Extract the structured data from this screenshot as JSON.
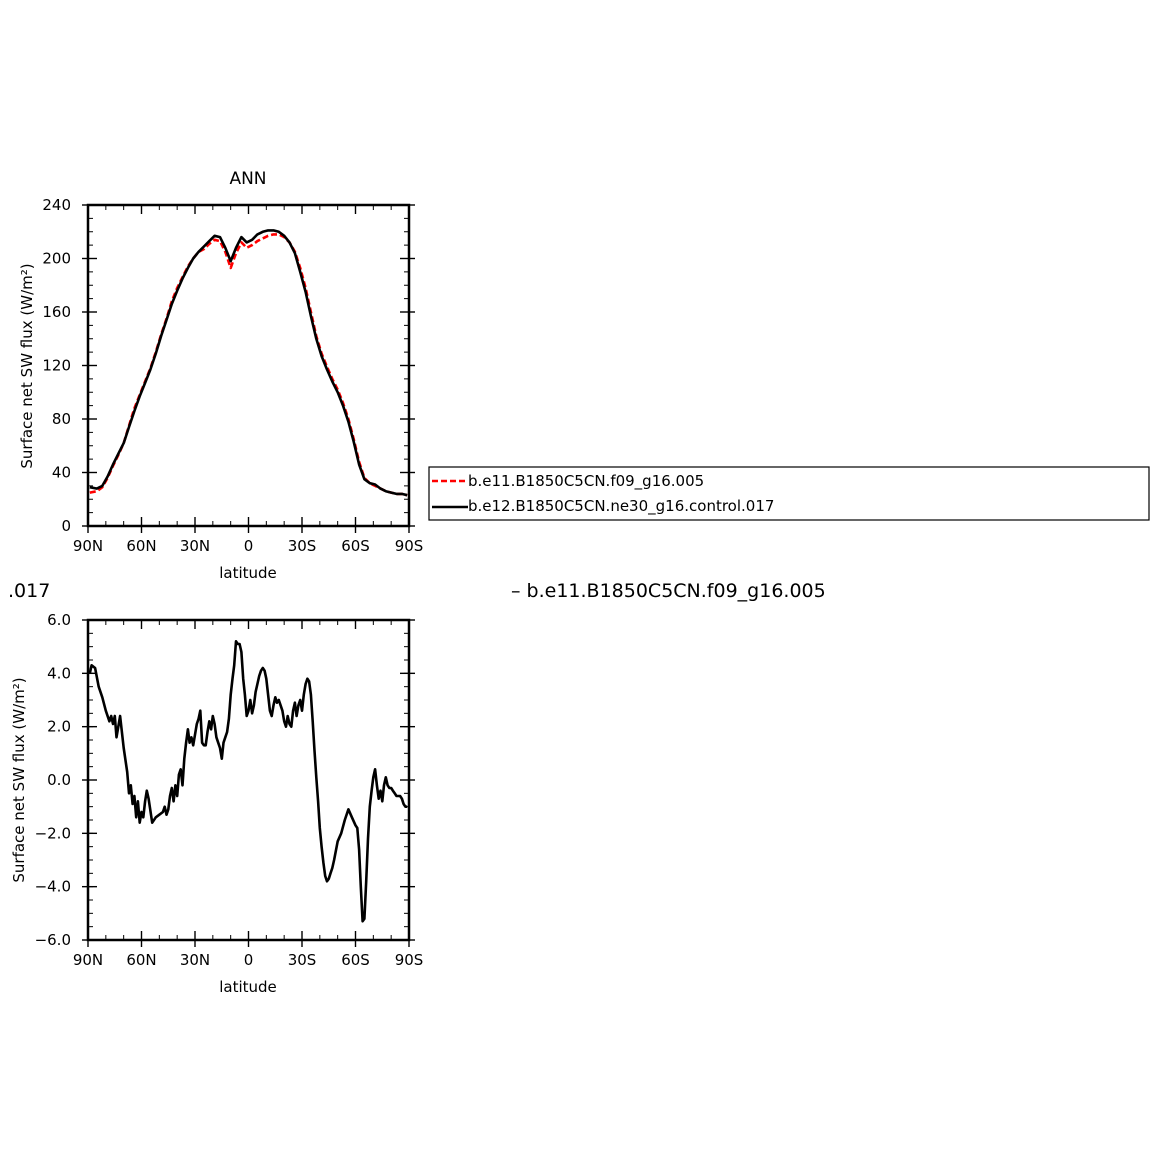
{
  "figure_text": {
    "title_suffix": ".017",
    "diff_label": "–  b.e11.B1850C5CN.f09_g16.005"
  },
  "legend": {
    "entries": [
      {
        "label": "b.e11.B1850C5CN.f09_g16.005",
        "color": "#ff0000",
        "dash": true
      },
      {
        "label": "b.e12.B1850C5CN.ne30_g16.control.017",
        "color": "#000000",
        "dash": false
      }
    ]
  },
  "chart_data": [
    {
      "type": "line",
      "title": "ANN",
      "xlabel": "latitude",
      "ylabel": "Surface net SW flux (W/m²)",
      "xlim": [
        90,
        -90
      ],
      "ylim": [
        0,
        240
      ],
      "xticks": [
        90,
        60,
        30,
        0,
        -30,
        -60,
        -90
      ],
      "xtick_labels": [
        "90N",
        "60N",
        "30N",
        "0",
        "30S",
        "60S",
        "90S"
      ],
      "yticks": [
        0,
        40,
        80,
        120,
        160,
        200,
        240
      ],
      "ytick_labels": [
        "0",
        "40",
        "80",
        "120",
        "160",
        "200",
        "240"
      ],
      "x": [
        89,
        85,
        82,
        79,
        76,
        73,
        70,
        67,
        64,
        61,
        58,
        55,
        52,
        49,
        46,
        43,
        40,
        37,
        34,
        31,
        28,
        25,
        22,
        19,
        16,
        13,
        10,
        7,
        4,
        1,
        -2,
        -5,
        -8,
        -11,
        -14,
        -17,
        -20,
        -23,
        -26,
        -29,
        -32,
        -35,
        -38,
        -41,
        -44,
        -47,
        -50,
        -53,
        -56,
        -59,
        -62,
        -65,
        -68,
        -71,
        -74,
        -77,
        -80,
        -83,
        -86,
        -89
      ],
      "series": [
        {
          "name": "b.e11.B1850C5CN.f09_g16.005",
          "color": "#ff0000",
          "dash": true,
          "values": [
            25,
            26,
            29,
            36,
            45,
            53,
            62,
            75,
            88,
            98,
            108,
            118,
            130,
            143,
            155,
            168,
            178,
            186,
            194,
            200,
            205,
            207,
            211,
            214,
            213,
            205,
            193,
            204,
            212,
            208,
            210,
            213,
            215,
            217,
            218,
            218,
            216,
            212,
            205,
            193,
            178,
            160,
            142,
            129,
            119,
            110,
            102,
            92,
            80,
            65,
            48,
            36,
            32,
            30,
            28,
            26,
            25,
            24,
            24,
            23
          ]
        },
        {
          "name": "b.e12.B1850C5CN.ne30_g16.control.017",
          "color": "#000000",
          "dash": false,
          "values": [
            29,
            28,
            30,
            37,
            46,
            54,
            62,
            74,
            86,
            97,
            107,
            117,
            129,
            142,
            154,
            166,
            176,
            185,
            193,
            200,
            205,
            209,
            213,
            217,
            216,
            208,
            198,
            208,
            216,
            212,
            214,
            218,
            220,
            221,
            221,
            220,
            217,
            212,
            204,
            190,
            175,
            157,
            140,
            127,
            117,
            108,
            100,
            90,
            78,
            63,
            46,
            35,
            32,
            31,
            28,
            26,
            25,
            24,
            24,
            23
          ]
        }
      ]
    },
    {
      "type": "line",
      "title": "",
      "xlabel": "latitude",
      "ylabel": "Surface net SW flux (W/m²)",
      "xlim": [
        90,
        -90
      ],
      "ylim": [
        -6,
        6
      ],
      "xticks": [
        90,
        60,
        30,
        0,
        -30,
        -60,
        -90
      ],
      "xtick_labels": [
        "90N",
        "60N",
        "30N",
        "0",
        "30S",
        "60S",
        "90S"
      ],
      "yticks": [
        6,
        4,
        2,
        0,
        -2,
        -4,
        -6
      ],
      "ytick_labels": [
        "6.0",
        "4.0",
        "2.0",
        "0.0",
        "−2.0",
        "−4.0",
        "−6.0"
      ],
      "x": [
        89,
        88,
        86,
        84,
        82,
        80,
        78,
        77,
        76,
        75,
        74,
        73,
        72,
        70,
        68,
        67,
        66,
        65,
        64,
        63,
        62,
        61,
        60,
        59,
        58,
        57,
        56,
        54,
        52,
        50,
        48,
        47,
        46,
        45,
        44,
        43,
        42,
        41,
        40,
        39,
        38,
        37,
        36,
        35,
        34,
        33,
        32,
        31,
        30,
        29,
        28,
        27,
        26,
        25,
        24,
        23,
        22,
        21,
        20,
        19,
        18,
        17,
        16,
        15,
        14,
        13,
        12,
        11,
        10,
        9,
        8,
        7,
        6,
        5,
        4,
        3,
        2,
        1,
        0,
        -1,
        -2,
        -3,
        -4,
        -5,
        -6,
        -7,
        -8,
        -9,
        -10,
        -11,
        -12,
        -13,
        -14,
        -15,
        -16,
        -17,
        -18,
        -19,
        -20,
        -21,
        -22,
        -23,
        -24,
        -25,
        -26,
        -27,
        -28,
        -29,
        -30,
        -31,
        -32,
        -33,
        -34,
        -35,
        -36,
        -37,
        -38,
        -39,
        -40,
        -41,
        -42,
        -43,
        -44,
        -45,
        -46,
        -47,
        -48,
        -50,
        -52,
        -54,
        -56,
        -58,
        -60,
        -61,
        -62,
        -63,
        -64,
        -65,
        -66,
        -67,
        -68,
        -69,
        -70,
        -71,
        -72,
        -73,
        -74,
        -75,
        -76,
        -77,
        -78,
        -79,
        -80,
        -81,
        -82,
        -83,
        -84,
        -85,
        -86,
        -87,
        -88,
        -89
      ],
      "series": [
        {
          "name": "",
          "color": "#000000",
          "dash": false,
          "values": [
            4.0,
            4.3,
            4.2,
            3.5,
            3.1,
            2.6,
            2.2,
            2.4,
            2.1,
            2.4,
            1.6,
            2.0,
            2.4,
            1.2,
            0.3,
            -0.5,
            -0.2,
            -0.9,
            -0.6,
            -1.4,
            -0.8,
            -1.6,
            -1.2,
            -1.4,
            -0.8,
            -0.4,
            -0.7,
            -1.6,
            -1.4,
            -1.3,
            -1.2,
            -1.0,
            -1.3,
            -1.1,
            -0.6,
            -0.3,
            -0.8,
            -0.2,
            -0.6,
            0.2,
            0.4,
            -0.2,
            0.8,
            1.4,
            1.9,
            1.4,
            1.6,
            1.3,
            1.7,
            2.1,
            2.3,
            2.6,
            1.4,
            1.3,
            1.3,
            1.8,
            2.2,
            1.9,
            2.4,
            2.1,
            1.6,
            1.4,
            1.2,
            0.8,
            1.4,
            1.6,
            1.8,
            2.3,
            3.2,
            3.8,
            4.3,
            5.2,
            5.1,
            5.1,
            4.8,
            3.8,
            3.2,
            2.4,
            2.6,
            3.0,
            2.5,
            2.8,
            3.3,
            3.6,
            3.9,
            4.1,
            4.2,
            4.1,
            3.8,
            3.2,
            2.6,
            2.4,
            2.8,
            3.1,
            2.9,
            3.0,
            2.8,
            2.6,
            2.2,
            2.0,
            2.4,
            2.1,
            2.0,
            2.6,
            2.9,
            2.4,
            2.8,
            3.0,
            2.6,
            3.2,
            3.6,
            3.8,
            3.7,
            3.2,
            2.2,
            1.1,
            0.1,
            -0.8,
            -1.8,
            -2.5,
            -3.1,
            -3.6,
            -3.8,
            -3.7,
            -3.5,
            -3.3,
            -3.0,
            -2.3,
            -2.0,
            -1.5,
            -1.1,
            -1.4,
            -1.7,
            -1.8,
            -2.6,
            -4.0,
            -5.3,
            -5.2,
            -3.8,
            -2.2,
            -1.0,
            -0.4,
            0.1,
            0.4,
            -0.2,
            -0.7,
            -0.4,
            -0.8,
            -0.2,
            0.1,
            -0.2,
            -0.3,
            -0.3,
            -0.4,
            -0.5,
            -0.6,
            -0.6,
            -0.6,
            -0.7,
            -0.9,
            -1.0,
            -1.0
          ]
        }
      ]
    }
  ]
}
